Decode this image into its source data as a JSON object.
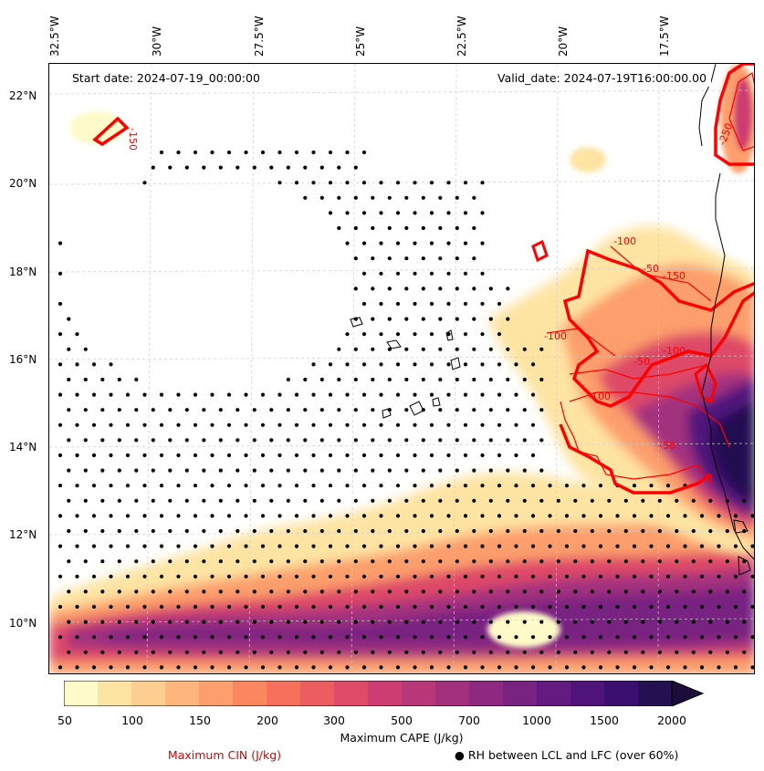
{
  "header": {
    "start_date": "Start date: 2024-07-19_00:00:00",
    "valid_date": "Valid_date: 2024-07-19T16:00:00.00"
  },
  "axes": {
    "lon_labels": [
      "32.5°W",
      "30°W",
      "27.5°W",
      "25°W",
      "22.5°W",
      "20°W",
      "17.5°W"
    ],
    "lat_labels": [
      "22°N",
      "20°N",
      "18°N",
      "16°N",
      "14°N",
      "12°N",
      "10°N"
    ]
  },
  "cin_contour_labels": [
    "-150",
    "-100",
    "-50",
    "-150",
    "-100",
    "-50",
    "-100",
    "-250",
    "-100",
    "-50"
  ],
  "colorbar": {
    "ticks": [
      "50",
      "100",
      "150",
      "200",
      "300",
      "500",
      "700",
      "1000",
      "1500",
      "2000"
    ],
    "label": "Maximum CAPE (J/kg)",
    "colors": [
      "#fffac8",
      "#fee4a3",
      "#fecd90",
      "#feb67d",
      "#fd9f6c",
      "#fb8761",
      "#f6705c",
      "#ec5d5f",
      "#de4a68",
      "#cd3d71",
      "#b73779",
      "#a3307e",
      "#8d2981",
      "#782281",
      "#641a80",
      "#4f137b",
      "#3b0f70",
      "#231151"
    ],
    "extend_color": "#1b0d3a"
  },
  "legend": {
    "cin_label": "Maximum CIN (J/kg)",
    "rh_label": "● RH between LCL and LFC (over 60%)"
  },
  "colors": {
    "cin_contour": "#ff0000",
    "grid": "#cccccc"
  }
}
